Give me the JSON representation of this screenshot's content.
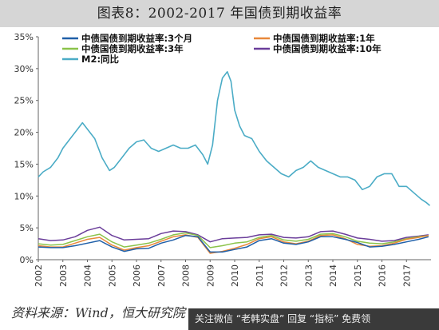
{
  "title": "图表8：2002-2017 年国债到期收益率",
  "source": "资料来源：Wind，恒大研究院",
  "banner": "关注微信 “老韩实盘” 回复 “指标” 免费领",
  "chart_data": {
    "type": "line",
    "title": "图表8：2002-2017 年国债到期收益率",
    "xlabel": "",
    "ylabel": "",
    "ylim": [
      0,
      35
    ],
    "yticks": [
      "0%",
      "5%",
      "10%",
      "15%",
      "20%",
      "25%",
      "30%",
      "35%"
    ],
    "xticks": [
      "2002",
      "2003",
      "2004",
      "2005",
      "2006",
      "2007",
      "2008",
      "2009",
      "2010",
      "2011",
      "2012",
      "2013",
      "2014",
      "2015",
      "2016",
      "2017"
    ],
    "legend_placement": "top",
    "grid": false,
    "series": [
      {
        "name": "中债国债到期收益率:3个月",
        "color": "#1f5fa8",
        "x": [
          2002,
          2002.5,
          2003,
          2003.5,
          2004,
          2004.5,
          2005,
          2005.5,
          2006,
          2006.5,
          2007,
          2007.5,
          2008,
          2008.5,
          2009,
          2009.5,
          2010,
          2010.5,
          2011,
          2011.5,
          2012,
          2012.5,
          2013,
          2013.5,
          2014,
          2014.5,
          2015,
          2015.5,
          2016,
          2016.5,
          2017,
          2017.5,
          2017.9
        ],
        "y": [
          2.0,
          1.9,
          1.9,
          2.2,
          2.6,
          3.0,
          2.0,
          1.3,
          1.7,
          1.8,
          2.6,
          3.1,
          3.8,
          3.6,
          1.2,
          1.2,
          1.6,
          2.0,
          3.0,
          3.3,
          2.6,
          2.4,
          2.8,
          3.6,
          3.6,
          3.2,
          2.7,
          2.0,
          2.1,
          2.4,
          2.8,
          3.2,
          3.6
        ]
      },
      {
        "name": "中债国债到期收益率:1年",
        "color": "#e8883a",
        "x": [
          2002,
          2002.5,
          2003,
          2003.5,
          2004,
          2004.5,
          2005,
          2005.5,
          2006,
          2006.5,
          2007,
          2007.5,
          2008,
          2008.5,
          2009,
          2009.5,
          2010,
          2010.5,
          2011,
          2011.5,
          2012,
          2012.5,
          2013,
          2013.5,
          2014,
          2014.5,
          2015,
          2015.5,
          2016,
          2016.5,
          2017,
          2017.5,
          2017.9
        ],
        "y": [
          2.2,
          2.0,
          2.0,
          2.6,
          3.2,
          3.5,
          2.3,
          1.5,
          1.9,
          2.2,
          2.9,
          3.6,
          3.9,
          3.5,
          1.0,
          1.3,
          1.8,
          2.4,
          3.3,
          3.6,
          2.8,
          2.5,
          2.9,
          3.8,
          3.9,
          3.3,
          2.4,
          2.1,
          2.2,
          2.6,
          3.2,
          3.5,
          3.8
        ]
      },
      {
        "name": "中债国债到期收益率:3年",
        "color": "#8bc34a",
        "x": [
          2002,
          2002.5,
          2003,
          2003.5,
          2004,
          2004.5,
          2005,
          2005.5,
          2006,
          2006.5,
          2007,
          2007.5,
          2008,
          2008.5,
          2009,
          2009.5,
          2010,
          2010.5,
          2011,
          2011.5,
          2012,
          2012.5,
          2013,
          2013.5,
          2014,
          2014.5,
          2015,
          2015.5,
          2016,
          2016.5,
          2017,
          2017.5,
          2017.9
        ],
        "y": [
          2.5,
          2.3,
          2.4,
          3.0,
          3.6,
          4.0,
          2.8,
          2.0,
          2.3,
          2.6,
          3.2,
          3.9,
          4.2,
          3.8,
          1.9,
          2.2,
          2.6,
          2.8,
          3.5,
          3.8,
          3.1,
          2.9,
          3.2,
          4.0,
          4.1,
          3.6,
          2.9,
          2.6,
          2.5,
          2.8,
          3.3,
          3.6,
          3.8
        ]
      },
      {
        "name": "中债国债到期收益率:10年",
        "color": "#6a3d9a",
        "x": [
          2002,
          2002.5,
          2003,
          2003.5,
          2004,
          2004.5,
          2005,
          2005.5,
          2006,
          2006.5,
          2007,
          2007.5,
          2008,
          2008.5,
          2009,
          2009.5,
          2010,
          2010.5,
          2011,
          2011.5,
          2012,
          2012.5,
          2013,
          2013.5,
          2014,
          2014.5,
          2015,
          2015.5,
          2016,
          2016.5,
          2017,
          2017.5,
          2017.9
        ],
        "y": [
          3.3,
          3.0,
          3.1,
          3.6,
          4.6,
          5.1,
          3.8,
          3.1,
          3.2,
          3.3,
          4.1,
          4.5,
          4.4,
          3.9,
          2.8,
          3.3,
          3.4,
          3.5,
          3.9,
          4.0,
          3.5,
          3.4,
          3.6,
          4.4,
          4.5,
          4.0,
          3.4,
          3.2,
          2.9,
          3.0,
          3.5,
          3.7,
          3.9
        ]
      },
      {
        "name": "M2:同比",
        "color": "#4bacc6",
        "x": [
          2002,
          2002.2,
          2002.5,
          2002.8,
          2003,
          2003.3,
          2003.6,
          2003.8,
          2004,
          2004.3,
          2004.6,
          2004.9,
          2005.1,
          2005.4,
          2005.7,
          2006,
          2006.3,
          2006.6,
          2006.9,
          2007.2,
          2007.5,
          2007.8,
          2008.1,
          2008.4,
          2008.7,
          2008.9,
          2009.1,
          2009.3,
          2009.5,
          2009.7,
          2009.85,
          2010,
          2010.2,
          2010.4,
          2010.7,
          2011,
          2011.3,
          2011.6,
          2011.9,
          2012.2,
          2012.5,
          2012.8,
          2013.1,
          2013.4,
          2013.7,
          2014,
          2014.3,
          2014.6,
          2014.9,
          2015.2,
          2015.5,
          2015.8,
          2016.1,
          2016.4,
          2016.7,
          2017,
          2017.3,
          2017.6,
          2017.8,
          2017.95
        ],
        "y": [
          13.0,
          13.8,
          14.5,
          16.0,
          17.5,
          19.0,
          20.5,
          21.5,
          20.5,
          19.0,
          16.0,
          14.0,
          14.5,
          16.0,
          17.5,
          18.5,
          18.8,
          17.5,
          17.0,
          17.5,
          18.0,
          17.5,
          17.5,
          18.0,
          16.5,
          15.0,
          18.0,
          25.0,
          28.5,
          29.5,
          28.0,
          23.5,
          21.0,
          19.5,
          19.0,
          17.0,
          15.5,
          14.5,
          13.5,
          13.0,
          14.0,
          14.5,
          15.5,
          14.5,
          14.0,
          13.5,
          13.0,
          13.0,
          12.5,
          11.0,
          11.5,
          13.0,
          13.5,
          13.5,
          11.5,
          11.5,
          10.5,
          9.5,
          9.0,
          8.5
        ]
      }
    ]
  }
}
